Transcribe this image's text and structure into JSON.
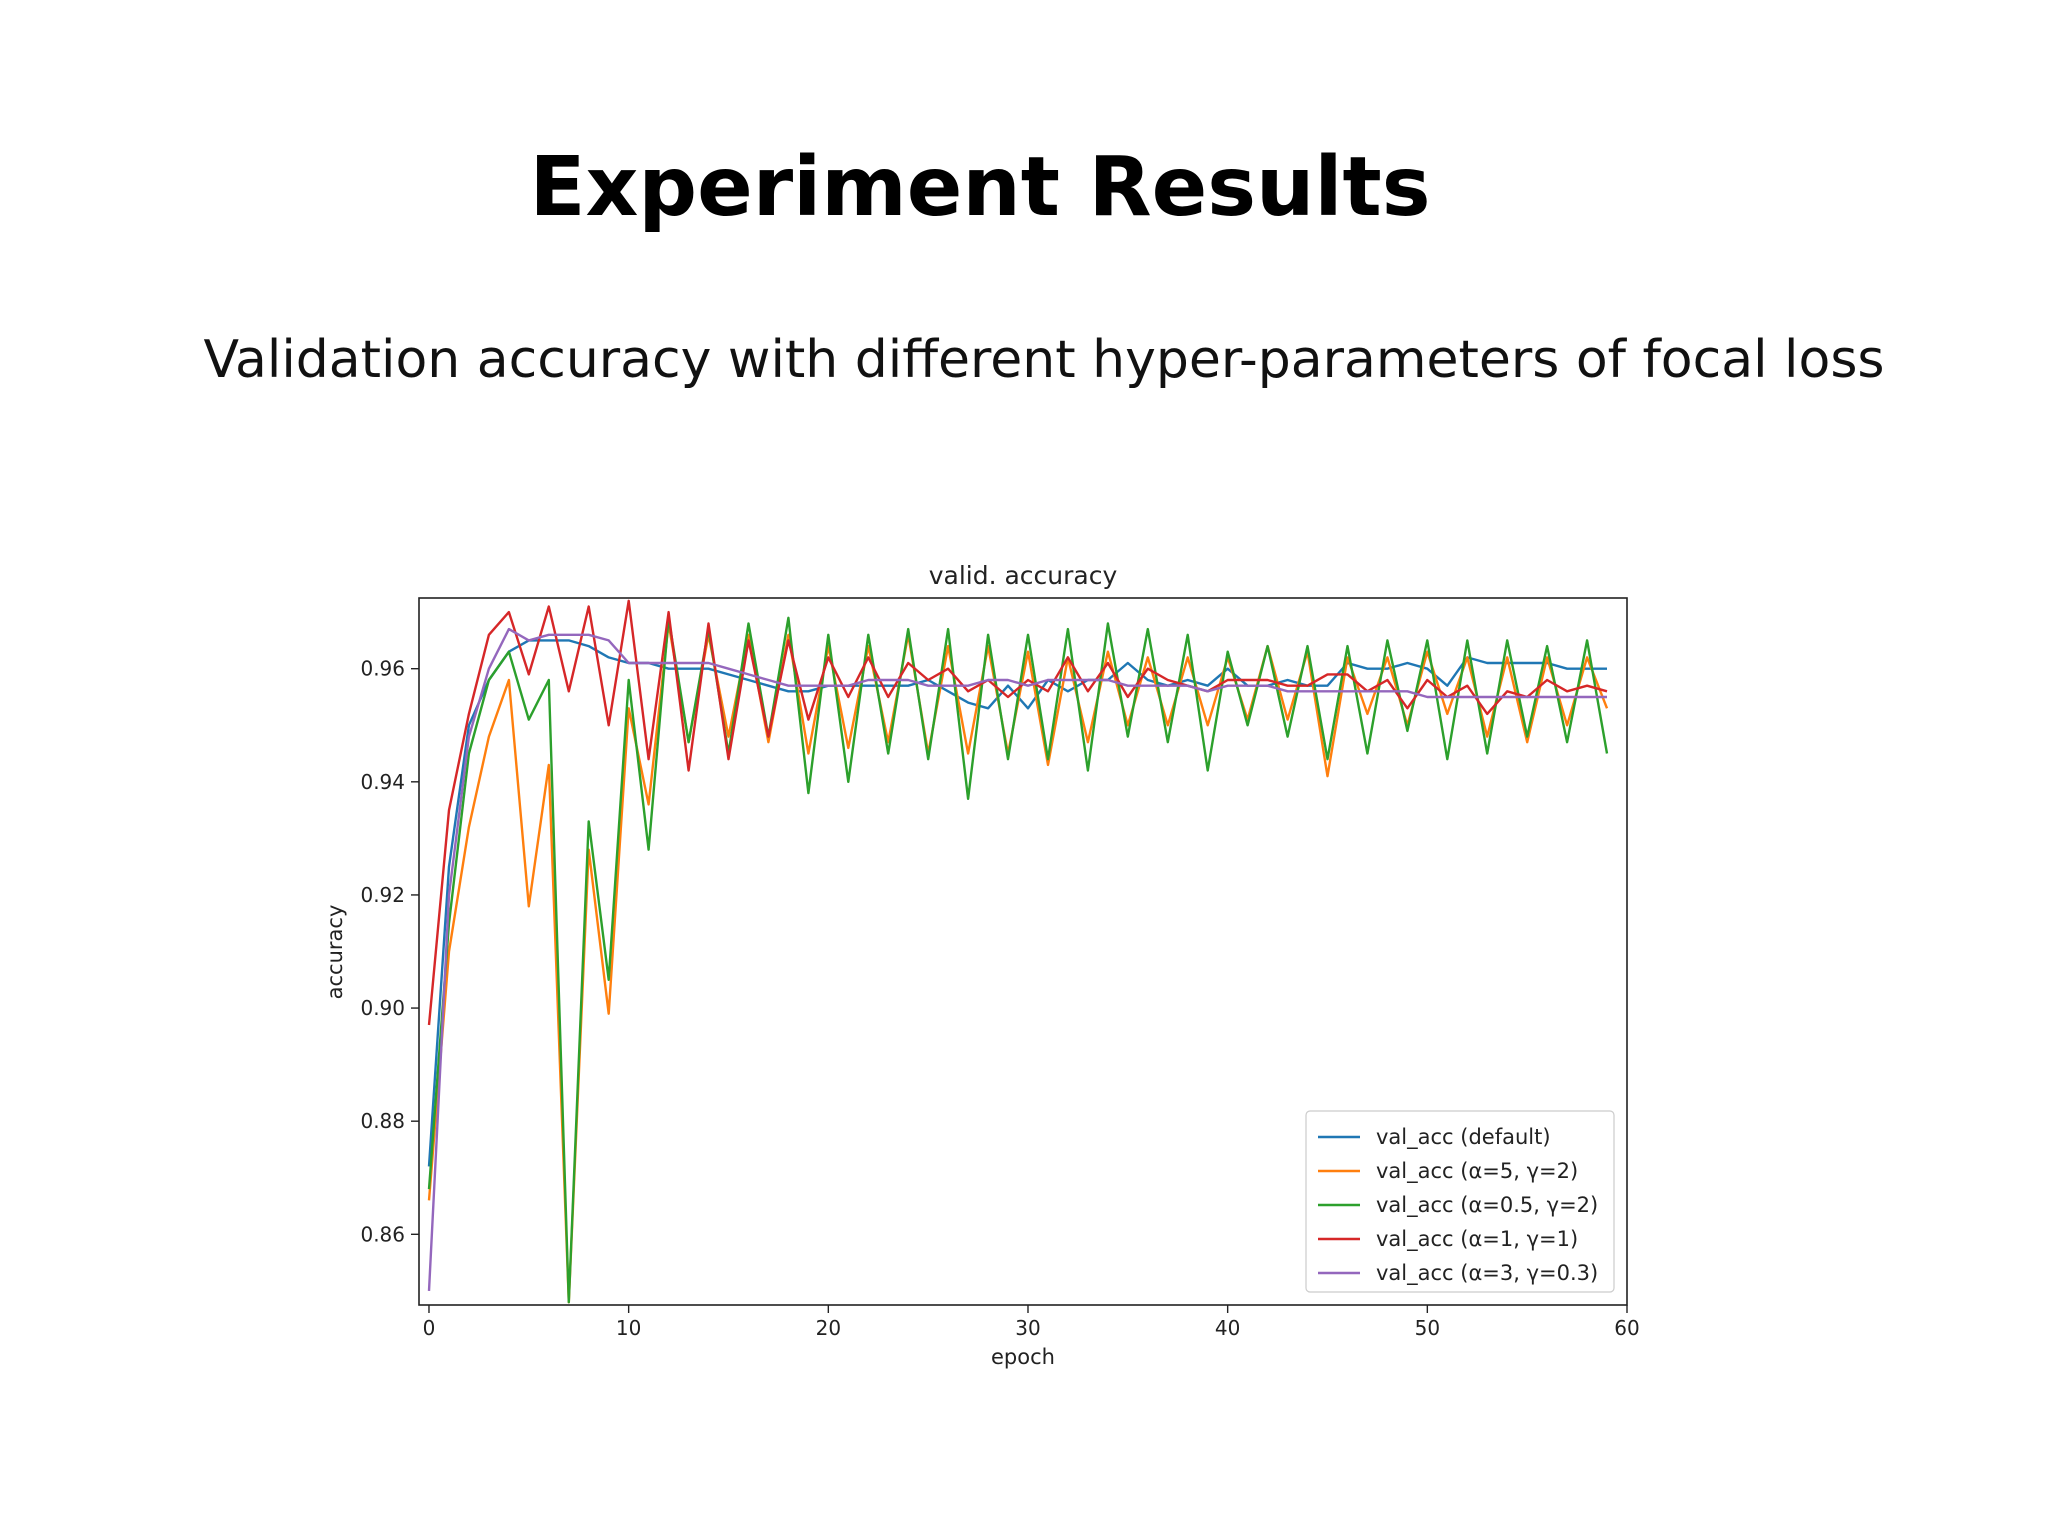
{
  "slide": {
    "title": "Experiment Results",
    "subtitle": "Validation accuracy with different hyper-parameters of focal loss"
  },
  "chart_data": {
    "type": "line",
    "title": "valid. accuracy",
    "xlabel": "epoch",
    "ylabel": "accuracy",
    "xlim": [
      -0.5,
      60
    ],
    "ylim": [
      0.8475,
      0.9725
    ],
    "xticks": [
      0,
      10,
      20,
      30,
      40,
      50,
      60
    ],
    "yticks": [
      0.86,
      0.88,
      0.9,
      0.92,
      0.94,
      0.96
    ],
    "ytick_labels": [
      "0.86",
      "0.88",
      "0.90",
      "0.92",
      "0.94",
      "0.96"
    ],
    "grid": false,
    "legend_position": "lower-right",
    "x": [
      0,
      1,
      2,
      3,
      4,
      5,
      6,
      7,
      8,
      9,
      10,
      11,
      12,
      13,
      14,
      15,
      16,
      17,
      18,
      19,
      20,
      21,
      22,
      23,
      24,
      25,
      26,
      27,
      28,
      29,
      30,
      31,
      32,
      33,
      34,
      35,
      36,
      37,
      38,
      39,
      40,
      41,
      42,
      43,
      44,
      45,
      46,
      47,
      48,
      49,
      50,
      51,
      52,
      53,
      54,
      55,
      56,
      57,
      58,
      59
    ],
    "series": [
      {
        "name": "val_acc (default)",
        "color": "#1f77b4",
        "values": [
          0.872,
          0.925,
          0.95,
          0.958,
          0.963,
          0.965,
          0.965,
          0.965,
          0.964,
          0.962,
          0.961,
          0.961,
          0.96,
          0.96,
          0.96,
          0.959,
          0.958,
          0.957,
          0.956,
          0.956,
          0.957,
          0.957,
          0.957,
          0.957,
          0.957,
          0.958,
          0.956,
          0.954,
          0.953,
          0.957,
          0.953,
          0.958,
          0.956,
          0.958,
          0.958,
          0.961,
          0.958,
          0.957,
          0.958,
          0.957,
          0.96,
          0.957,
          0.957,
          0.958,
          0.957,
          0.957,
          0.961,
          0.96,
          0.96,
          0.961,
          0.96,
          0.957,
          0.962,
          0.961,
          0.961,
          0.961,
          0.961,
          0.96,
          0.96,
          0.96
        ]
      },
      {
        "name": "val_acc (α=5, γ=2)",
        "color": "#ff7f0e",
        "values": [
          0.866,
          0.91,
          0.932,
          0.948,
          0.958,
          0.918,
          0.943,
          0.848,
          0.928,
          0.899,
          0.953,
          0.936,
          0.968,
          0.947,
          0.966,
          0.948,
          0.966,
          0.947,
          0.966,
          0.945,
          0.964,
          0.946,
          0.964,
          0.947,
          0.966,
          0.945,
          0.964,
          0.945,
          0.964,
          0.945,
          0.963,
          0.943,
          0.962,
          0.947,
          0.963,
          0.95,
          0.962,
          0.95,
          0.962,
          0.95,
          0.962,
          0.951,
          0.964,
          0.951,
          0.963,
          0.941,
          0.962,
          0.952,
          0.962,
          0.95,
          0.963,
          0.952,
          0.962,
          0.948,
          0.962,
          0.947,
          0.962,
          0.95,
          0.962,
          0.953
        ]
      },
      {
        "name": "val_acc (α=0.5, γ=2)",
        "color": "#2ca02c",
        "values": [
          0.868,
          0.915,
          0.945,
          0.958,
          0.963,
          0.951,
          0.958,
          0.848,
          0.933,
          0.905,
          0.958,
          0.928,
          0.969,
          0.947,
          0.967,
          0.945,
          0.968,
          0.948,
          0.969,
          0.938,
          0.966,
          0.94,
          0.966,
          0.945,
          0.967,
          0.944,
          0.967,
          0.937,
          0.966,
          0.944,
          0.966,
          0.944,
          0.967,
          0.942,
          0.968,
          0.948,
          0.967,
          0.947,
          0.966,
          0.942,
          0.963,
          0.95,
          0.964,
          0.948,
          0.964,
          0.944,
          0.964,
          0.945,
          0.965,
          0.949,
          0.965,
          0.944,
          0.965,
          0.945,
          0.965,
          0.948,
          0.964,
          0.947,
          0.965,
          0.945
        ]
      },
      {
        "name": "val_acc (α=1, γ=1)",
        "color": "#d62728",
        "values": [
          0.897,
          0.935,
          0.952,
          0.966,
          0.97,
          0.959,
          0.971,
          0.956,
          0.971,
          0.95,
          0.972,
          0.944,
          0.97,
          0.942,
          0.968,
          0.944,
          0.965,
          0.948,
          0.965,
          0.951,
          0.962,
          0.955,
          0.962,
          0.955,
          0.961,
          0.958,
          0.96,
          0.956,
          0.958,
          0.955,
          0.958,
          0.956,
          0.962,
          0.956,
          0.961,
          0.955,
          0.96,
          0.958,
          0.957,
          0.956,
          0.958,
          0.958,
          0.958,
          0.957,
          0.957,
          0.959,
          0.959,
          0.956,
          0.958,
          0.953,
          0.958,
          0.955,
          0.957,
          0.952,
          0.956,
          0.955,
          0.958,
          0.956,
          0.957,
          0.956
        ]
      },
      {
        "name": "val_acc (α=3, γ=0.3)",
        "color": "#9467bd",
        "values": [
          0.85,
          0.92,
          0.948,
          0.96,
          0.967,
          0.965,
          0.966,
          0.966,
          0.966,
          0.965,
          0.961,
          0.961,
          0.961,
          0.961,
          0.961,
          0.96,
          0.959,
          0.958,
          0.957,
          0.957,
          0.957,
          0.957,
          0.958,
          0.958,
          0.958,
          0.957,
          0.957,
          0.957,
          0.958,
          0.958,
          0.957,
          0.958,
          0.958,
          0.958,
          0.958,
          0.957,
          0.957,
          0.957,
          0.957,
          0.956,
          0.957,
          0.957,
          0.957,
          0.956,
          0.956,
          0.956,
          0.956,
          0.956,
          0.956,
          0.956,
          0.955,
          0.955,
          0.955,
          0.955,
          0.955,
          0.955,
          0.955,
          0.955,
          0.955,
          0.955
        ]
      }
    ]
  }
}
